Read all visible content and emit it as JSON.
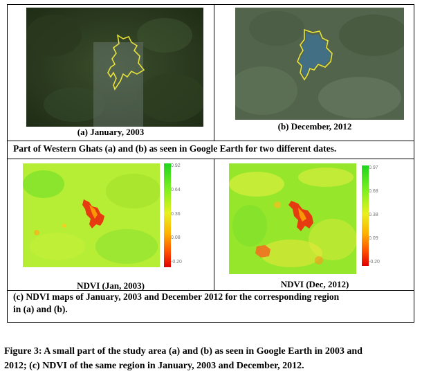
{
  "panels": {
    "a_caption": "(a) January, 2003",
    "b_caption": "(b) December, 2012",
    "ab_description": "Part of Western Ghats (a) and (b) as seen in Google Earth for two different dates.",
    "c1_caption": "NDVI (Jan, 2003)",
    "c2_caption": "NDVI (Dec, 2012)",
    "c_description_line1": "(c) NDVI maps of January, 2003 and December 2012 for the corresponding region",
    "c_description_line2": "in (a) and (b)."
  },
  "colorbar_left": {
    "ticks": [
      "0.92",
      "0.64",
      "0.36",
      "0.08",
      "-0.20"
    ]
  },
  "colorbar_right": {
    "ticks": [
      "0.97",
      "0.68",
      "0.38",
      "0.09",
      "-0.20"
    ]
  },
  "figure_caption_line1": "Figure 3: A small part of the study area (a) and (b) as seen in Google Earth in 2003 and",
  "figure_caption_line2": "2012; (c) NDVI of the same region in January, 2003 and December, 2012."
}
